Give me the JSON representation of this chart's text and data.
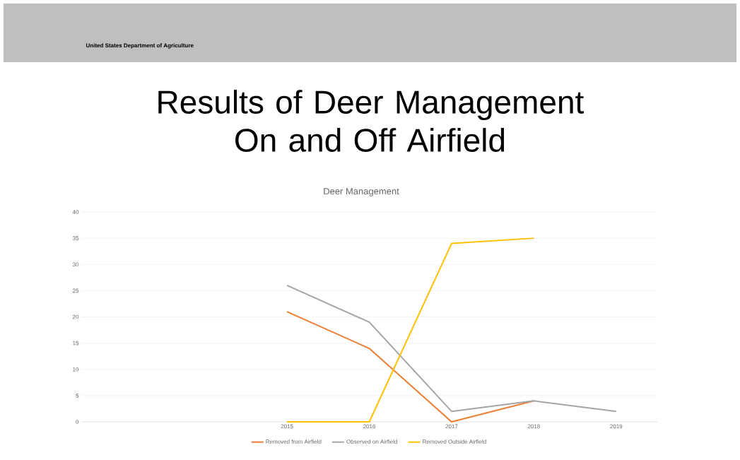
{
  "chart_data": {
    "type": "line",
    "title": "Results of Deer Management On and Off Airfield",
    "subtitle": "Deer Management",
    "annotations": [
      "United States Department of Agriculture"
    ],
    "categories": [
      null,
      null,
      "2015",
      "2016",
      "2017",
      "2018",
      "2019"
    ],
    "series": [
      {
        "name": "Removed from Airfield",
        "color": "#ed7d31",
        "values": [
          null,
          null,
          21,
          14,
          0,
          4,
          null
        ]
      },
      {
        "name": "Observed on Airfield",
        "color": "#a5a5a5",
        "values": [
          null,
          null,
          26,
          19,
          2,
          4,
          2
        ]
      },
      {
        "name": "Removed Outside Airfield",
        "color": "#ffc000",
        "values": [
          null,
          null,
          0,
          0,
          34,
          35,
          null
        ]
      }
    ],
    "ylim": [
      0,
      40
    ],
    "yticks": [
      0,
      5,
      10,
      15,
      20,
      25,
      30,
      35,
      40
    ],
    "grid": "y",
    "legend": "bottom"
  }
}
